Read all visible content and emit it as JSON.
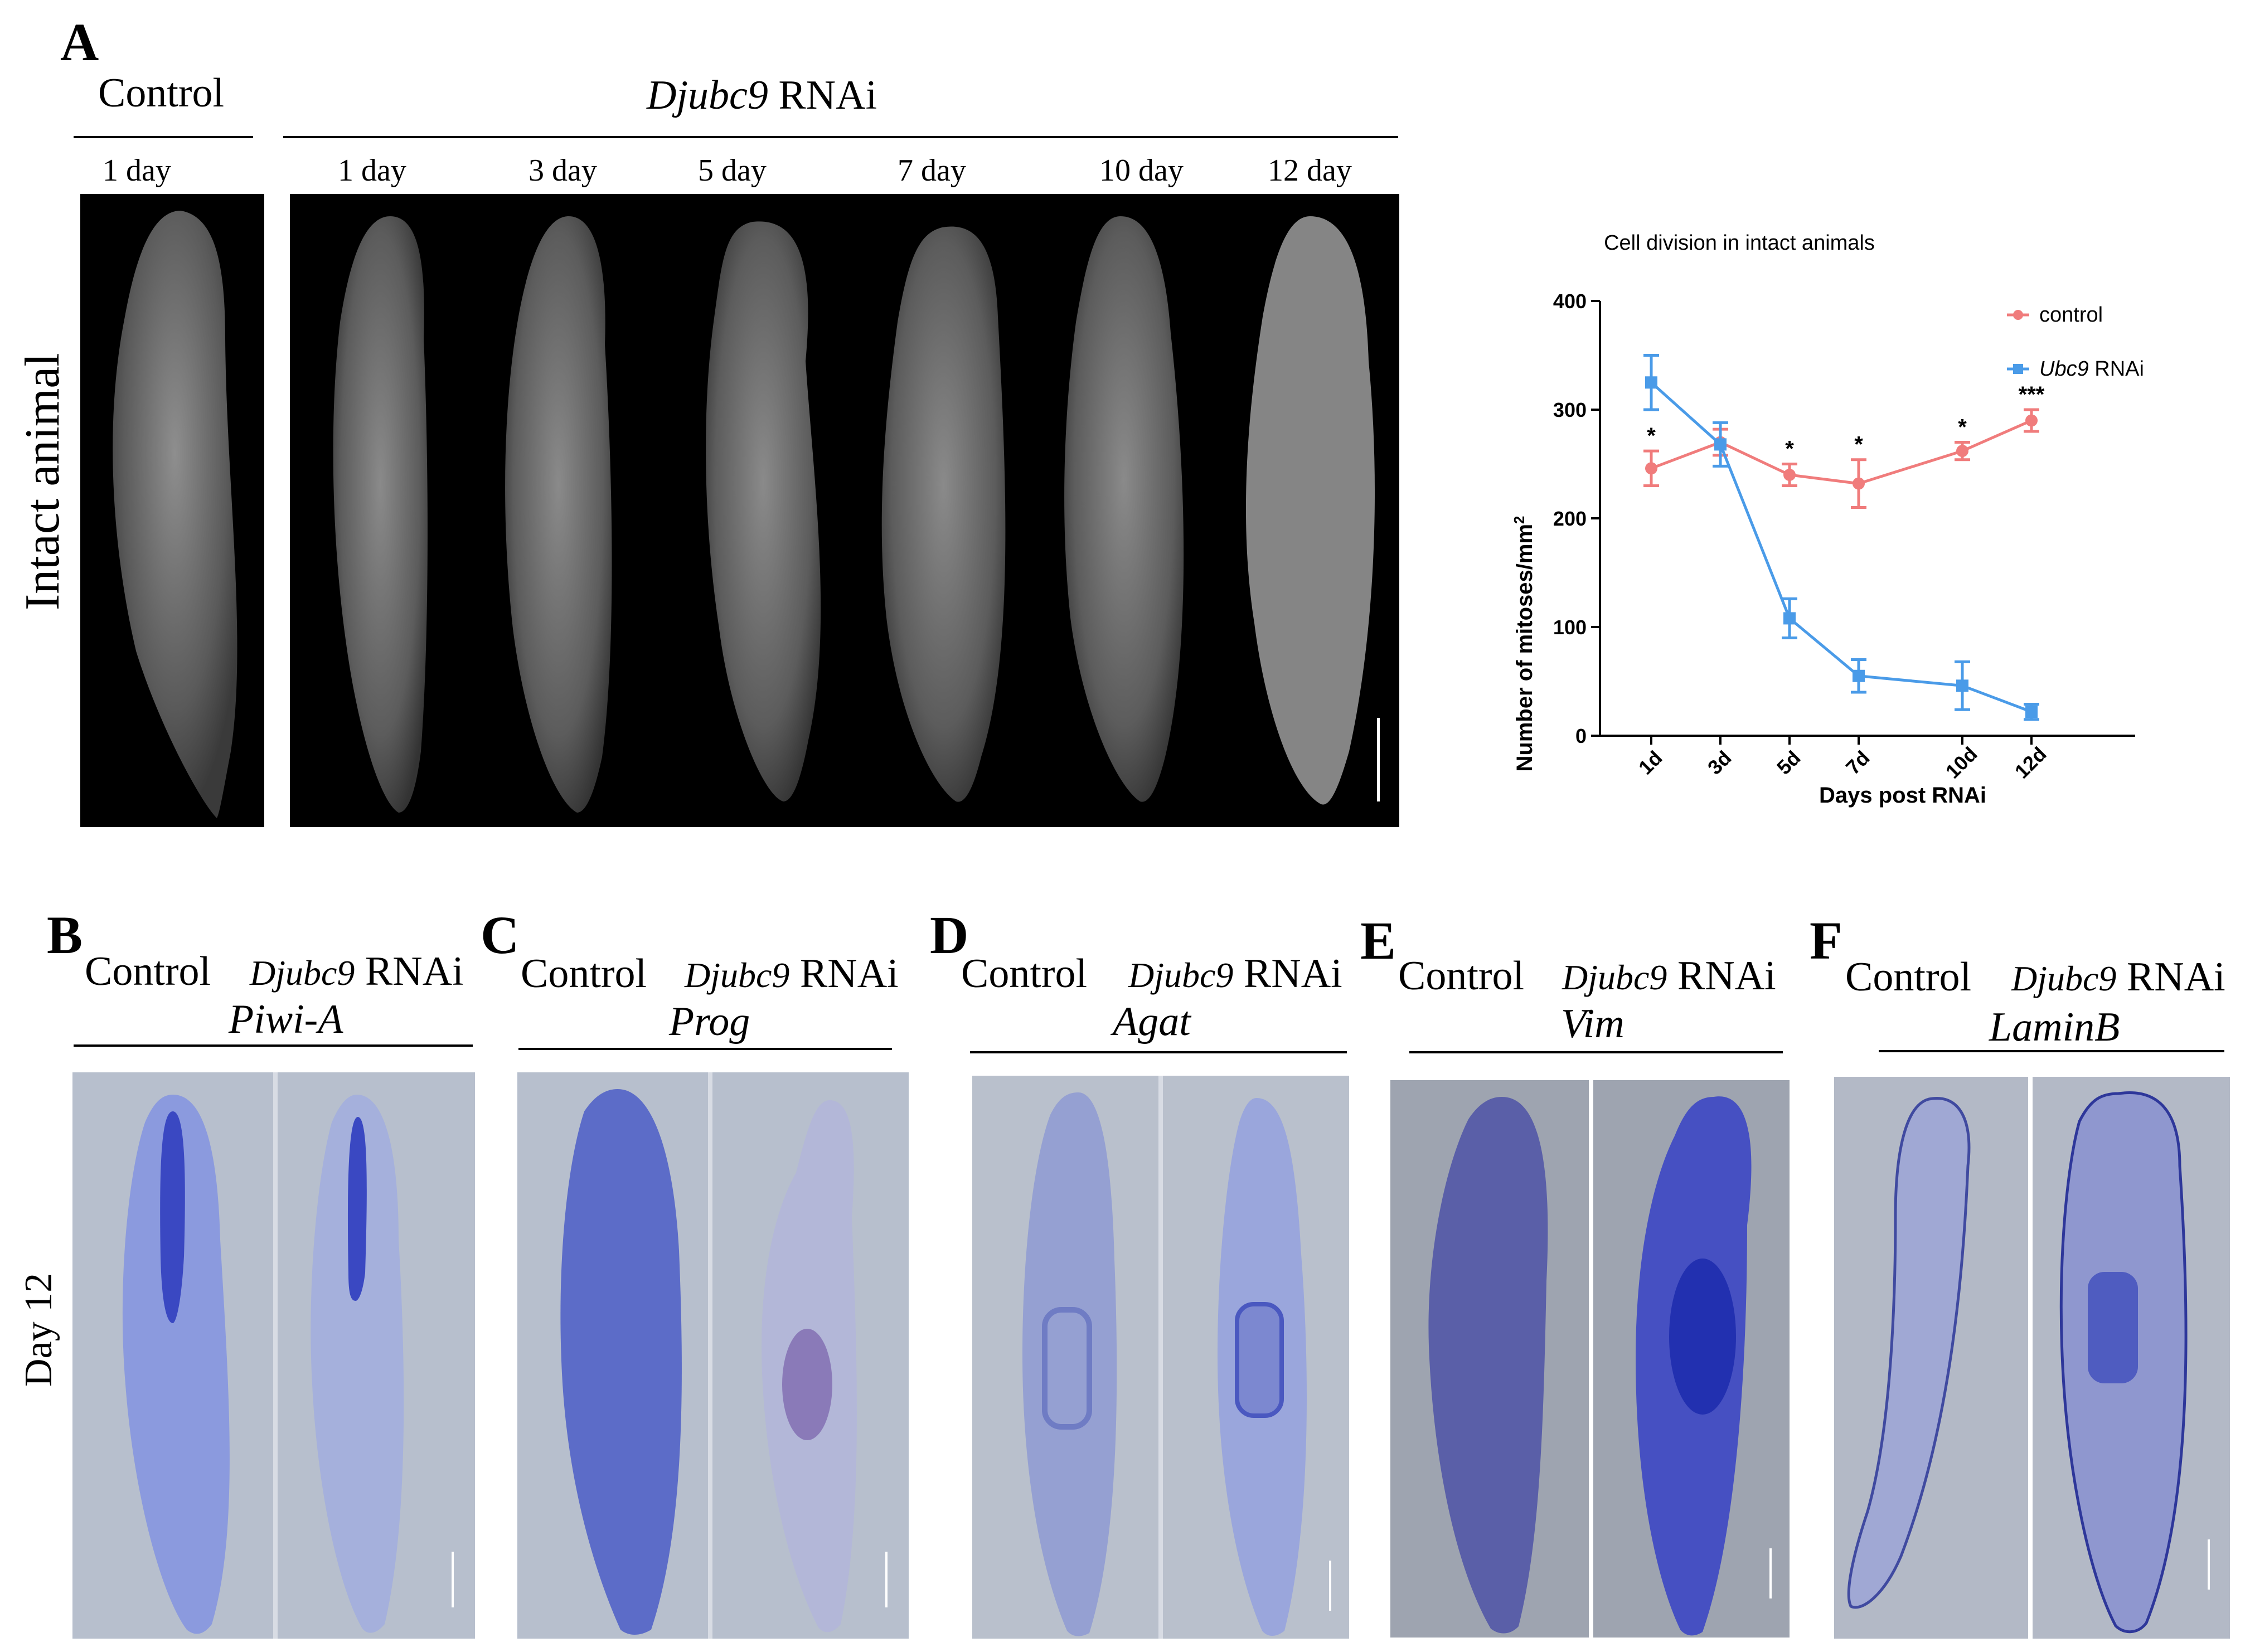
{
  "panels": {
    "A": {
      "letter": "A",
      "control_header": "Control",
      "rnai_gene": "Djubc9",
      "rnai_suffix": " RNAi",
      "row_label": "Intact animal",
      "timepoints": [
        "1 day",
        "1 day",
        "3 day",
        "5 day",
        "7 day",
        "10 day",
        "12 day"
      ]
    },
    "B": {
      "letter": "B",
      "control": "Control",
      "rnai_gene": "Djubc9",
      "rnai_suffix": " RNAi",
      "marker": "Piwi-A"
    },
    "C": {
      "letter": "C",
      "control": "Control",
      "rnai_gene": "Djubc9",
      "rnai_suffix": " RNAi",
      "marker": "Prog"
    },
    "D": {
      "letter": "D",
      "control": "Control",
      "rnai_gene": "Djubc9",
      "rnai_suffix": " RNAi",
      "marker": "Agat"
    },
    "E": {
      "letter": "E",
      "control": "Control",
      "rnai_gene": "Djubc9",
      "rnai_suffix": " RNAi",
      "marker": "Vim"
    },
    "F": {
      "letter": "F",
      "control": "Control",
      "rnai_gene": "Djubc9",
      "rnai_suffix": " RNAi",
      "marker": "LaminB"
    },
    "row_label_bottom": "Day 12"
  },
  "colors": {
    "control_series": "#f07c7c",
    "ubc9_series": "#4a9be8",
    "ish_background": "#b4bccb",
    "ish_stain": "#3a4fc0",
    "fluor_background": "#000000"
  },
  "chart_data": {
    "type": "line",
    "title": "Cell division in  intact animals",
    "xlabel": "Days post RNAi",
    "ylabel": "Number of mitoses/mm",
    "ylabel_superscript": "2",
    "categories": [
      "1d",
      "3d",
      "5d",
      "7d",
      "10d",
      "12d"
    ],
    "x_days": [
      1,
      3,
      5,
      7,
      10,
      12
    ],
    "ylim": [
      0,
      400
    ],
    "yticks": [
      0,
      100,
      200,
      300,
      400
    ],
    "legend_position": "top-right",
    "series": [
      {
        "name": "control",
        "name_italic": "",
        "values": [
          246,
          270,
          240,
          232,
          262,
          290
        ],
        "errors": [
          16,
          12,
          10,
          22,
          8,
          10
        ],
        "marker": "circle"
      },
      {
        "name": " RNAi",
        "name_italic": "Ubc9",
        "values": [
          325,
          268,
          108,
          55,
          46,
          22
        ],
        "errors": [
          25,
          20,
          18,
          15,
          22,
          7
        ],
        "marker": "square"
      }
    ],
    "annotations": [
      {
        "category": "1d",
        "text": "*"
      },
      {
        "category": "5d",
        "text": "*"
      },
      {
        "category": "7d",
        "text": "*"
      },
      {
        "category": "10d",
        "text": "*"
      },
      {
        "category": "12d",
        "text": "***"
      }
    ]
  }
}
